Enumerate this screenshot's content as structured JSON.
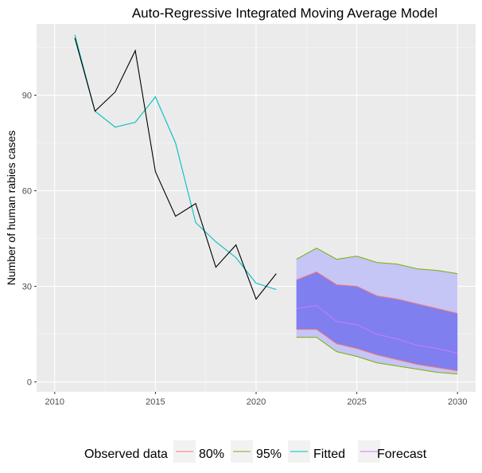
{
  "chart_data": {
    "type": "line",
    "title": "Auto-Regressive Integrated Moving Average Model",
    "xlabel": "",
    "ylabel": "Number of human rabies cases",
    "xlim": [
      2009.1,
      2030.9
    ],
    "ylim": [
      -3.1,
      112.4
    ],
    "x_ticks": [
      2010,
      2015,
      2020,
      2025,
      2030
    ],
    "y_ticks": [
      0,
      30,
      60,
      90
    ],
    "grid": true,
    "legend_position": "bottom",
    "legend_title": "Observed data",
    "observed": {
      "x": [
        2011,
        2012,
        2013,
        2014,
        2015,
        2016,
        2017,
        2018,
        2019,
        2020,
        2021
      ],
      "y": [
        108,
        85,
        91,
        104,
        66,
        52,
        56,
        36,
        43,
        26,
        34
      ],
      "color": "#000000"
    },
    "fitted": {
      "x": [
        2011,
        2012,
        2013,
        2014,
        2015,
        2016,
        2017,
        2018,
        2019,
        2020,
        2021
      ],
      "y": [
        109,
        85,
        80,
        81.5,
        89.5,
        75,
        50,
        44,
        39,
        31,
        29
      ],
      "color": "#00BFC4"
    },
    "forecast": {
      "x": [
        2022,
        2023,
        2024,
        2025,
        2026,
        2027,
        2028,
        2029,
        2030
      ],
      "mean": [
        23,
        24,
        19,
        18,
        15,
        13.5,
        11.5,
        10.5,
        9
      ],
      "lo80": [
        16.5,
        16.5,
        12,
        10.5,
        8.5,
        7,
        5.5,
        4.5,
        3.5
      ],
      "hi80": [
        32,
        34.5,
        30.5,
        30,
        27,
        26,
        24.5,
        23,
        21.5
      ],
      "lo95": [
        14,
        14,
        9.5,
        8,
        6,
        5,
        4,
        3,
        2.5
      ],
      "hi95": [
        38.5,
        42,
        38.5,
        39.5,
        37.5,
        37,
        35.5,
        35,
        34
      ],
      "fill80": "#7f7ff0",
      "fill95": "#c5c5f6",
      "color_mean": "#C77CFF",
      "color_80": "#F8766D",
      "color_95": "#7CAE00"
    },
    "legend": [
      {
        "label": "80%",
        "color": "#F8766D"
      },
      {
        "label": "95%",
        "color": "#7CAE00"
      },
      {
        "label": "Fitted",
        "color": "#00BFC4"
      },
      {
        "label": "Forecast",
        "color": "#C77CFF"
      }
    ],
    "panel_background": "#ebebeb"
  }
}
